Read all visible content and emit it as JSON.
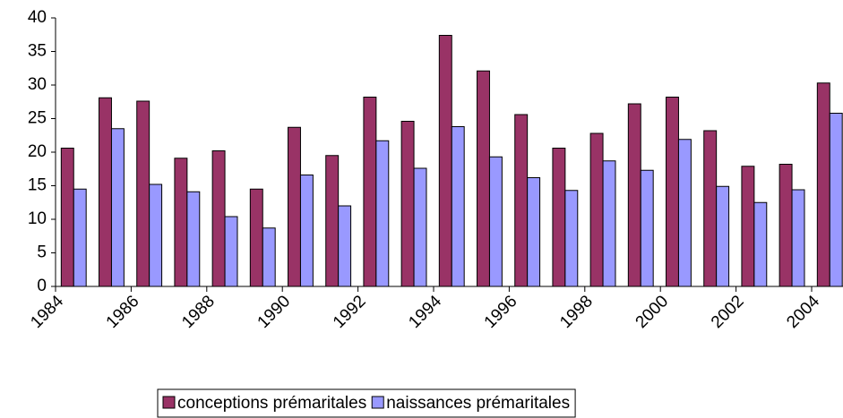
{
  "chart_data": {
    "type": "bar",
    "categories": [
      "1984",
      null,
      "1986",
      null,
      "1988",
      null,
      "1990",
      null,
      "1992",
      null,
      "1994",
      null,
      "1996",
      null,
      "1998",
      null,
      "2000",
      null,
      "2002",
      null,
      "2004"
    ],
    "series": [
      {
        "name": "conceptions prémaritales",
        "color": "#993366",
        "values": [
          20.6,
          28.1,
          27.6,
          19.1,
          20.2,
          14.5,
          23.7,
          19.5,
          28.2,
          24.6,
          37.4,
          32.1,
          25.6,
          20.6,
          22.8,
          27.2,
          28.2,
          23.2,
          17.9,
          18.2,
          30.3
        ]
      },
      {
        "name": "naissances prémaritales",
        "color": "#9999ff",
        "values": [
          14.5,
          23.5,
          15.2,
          14.1,
          10.4,
          8.7,
          16.6,
          12.0,
          21.7,
          17.6,
          23.8,
          19.3,
          16.2,
          14.3,
          18.7,
          17.3,
          21.9,
          14.9,
          12.5,
          14.4,
          25.8
        ]
      }
    ],
    "ylim": [
      0,
      40
    ],
    "yticks": [
      0,
      5,
      10,
      15,
      20,
      25,
      30,
      35,
      40
    ],
    "grid": false
  }
}
